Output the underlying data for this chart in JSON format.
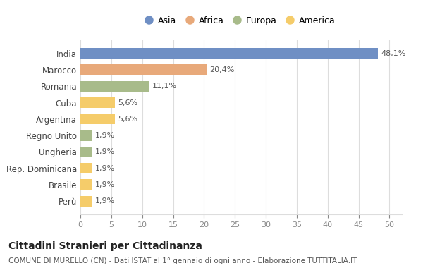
{
  "countries": [
    "India",
    "Marocco",
    "Romania",
    "Cuba",
    "Argentina",
    "Regno Unito",
    "Ungheria",
    "Rep. Dominicana",
    "Brasile",
    "Perù"
  ],
  "values": [
    48.1,
    20.4,
    11.1,
    5.6,
    5.6,
    1.9,
    1.9,
    1.9,
    1.9,
    1.9
  ],
  "labels": [
    "48,1%",
    "20,4%",
    "11,1%",
    "5,6%",
    "5,6%",
    "1,9%",
    "1,9%",
    "1,9%",
    "1,9%",
    "1,9%"
  ],
  "continents": [
    "Asia",
    "Africa",
    "Europa",
    "America",
    "America",
    "Europa",
    "Europa",
    "America",
    "America",
    "America"
  ],
  "colors": {
    "Asia": "#6F8FC4",
    "Africa": "#E8A97A",
    "Europa": "#A8BB8A",
    "America": "#F5CC6A"
  },
  "legend_order": [
    "Asia",
    "Africa",
    "Europa",
    "America"
  ],
  "title": "Cittadini Stranieri per Cittadinanza",
  "subtitle": "COMUNE DI MURELLO (CN) - Dati ISTAT al 1° gennaio di ogni anno - Elaborazione TUTTITALIA.IT",
  "xlim": [
    0,
    52
  ],
  "xticks": [
    0,
    5,
    10,
    15,
    20,
    25,
    30,
    35,
    40,
    45,
    50
  ],
  "bg_color": "#FFFFFF",
  "grid_color": "#DDDDDD",
  "bar_height": 0.65
}
